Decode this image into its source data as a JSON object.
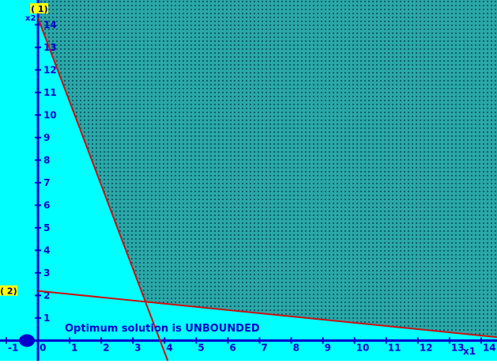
{
  "chart_data": {
    "type": "line",
    "title": "",
    "xlabel": "x1",
    "ylabel": "x2",
    "xlim": [
      -1.2,
      14.5
    ],
    "ylim": [
      -0.9,
      15.1
    ],
    "x_ticks": [
      -1,
      0,
      1,
      2,
      3,
      4,
      5,
      6,
      7,
      8,
      9,
      10,
      11,
      12,
      13,
      14
    ],
    "y_ticks": [
      1,
      2,
      3,
      4,
      5,
      6,
      7,
      8,
      9,
      10,
      11,
      12,
      13,
      14
    ],
    "grid": false,
    "constraints": [
      {
        "label": "( 1)",
        "points": [
          [
            0,
            14.3
          ],
          [
            4.1,
            -0.9
          ]
        ]
      },
      {
        "label": "( 2)",
        "points": [
          [
            0,
            2.2
          ],
          [
            14.5,
            0.15
          ]
        ]
      }
    ],
    "feasible_region": {
      "polygon": [
        [
          0,
          15.1
        ],
        [
          0,
          14.3
        ],
        [
          3.4,
          1.7
        ],
        [
          14.5,
          0.15
        ],
        [
          14.5,
          15.1
        ]
      ]
    },
    "marker": {
      "x": -0.35,
      "y": 0
    },
    "annotation": "Optimum solution is UNBOUNDED"
  },
  "colors": {
    "background": "#00ffff",
    "feasible_fill": "#2aa7a7",
    "grid_dots": "#0b5e6e",
    "axis": "#0000cc",
    "constraint_line": "#cc1111",
    "label_box": "#ffff00",
    "label_text": "#000080",
    "annotation_text": "#0000cc",
    "marker": "#0000cc"
  }
}
